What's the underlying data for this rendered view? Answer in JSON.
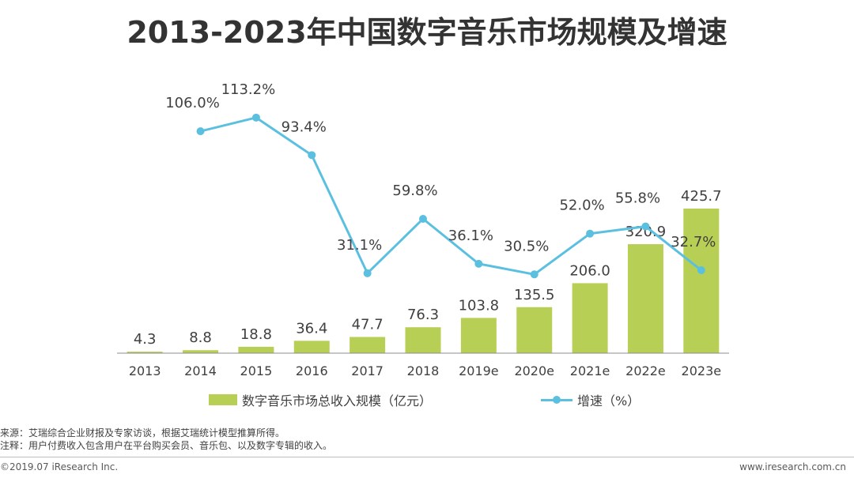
{
  "title": "2013-2023年中国数字音乐市场规模及增速",
  "chart_data": {
    "type": "bar+line",
    "categories": [
      "2013",
      "2014",
      "2015",
      "2016",
      "2017",
      "2018",
      "2019e",
      "2020e",
      "2021e",
      "2022e",
      "2023e"
    ],
    "series": [
      {
        "name": "数字音乐市场总收入规模（亿元）",
        "type": "bar",
        "values": [
          4.3,
          8.8,
          18.8,
          36.4,
          47.7,
          76.3,
          103.8,
          135.5,
          206.0,
          320.9,
          425.7
        ],
        "labels": [
          "4.3",
          "8.8",
          "18.8",
          "36.4",
          "47.7",
          "76.3",
          "103.8",
          "135.5",
          "206.0",
          "320.9",
          "425.7"
        ],
        "color": "#b8cf55"
      },
      {
        "name": "增速（%）",
        "type": "line",
        "values": [
          null,
          106.0,
          113.2,
          93.4,
          31.1,
          59.8,
          36.1,
          30.5,
          52.0,
          55.8,
          32.7
        ],
        "labels": [
          "",
          "106.0%",
          "113.2%",
          "93.4%",
          "31.1%",
          "59.8%",
          "36.1%",
          "30.5%",
          "52.0%",
          "55.8%",
          "32.7%"
        ],
        "color": "#5bc0e0"
      }
    ],
    "legend_position": "bottom",
    "grid": false
  },
  "notes": {
    "source": "来源：艾瑞综合企业财报及专家访谈，根据艾瑞统计模型推算所得。",
    "note": "注释：用户付费收入包含用户在平台购买会员、音乐包、以及数字专辑的收入。"
  },
  "footer": {
    "left": "©2019.07 iResearch Inc.",
    "right": "www.iresearch.com.cn"
  }
}
